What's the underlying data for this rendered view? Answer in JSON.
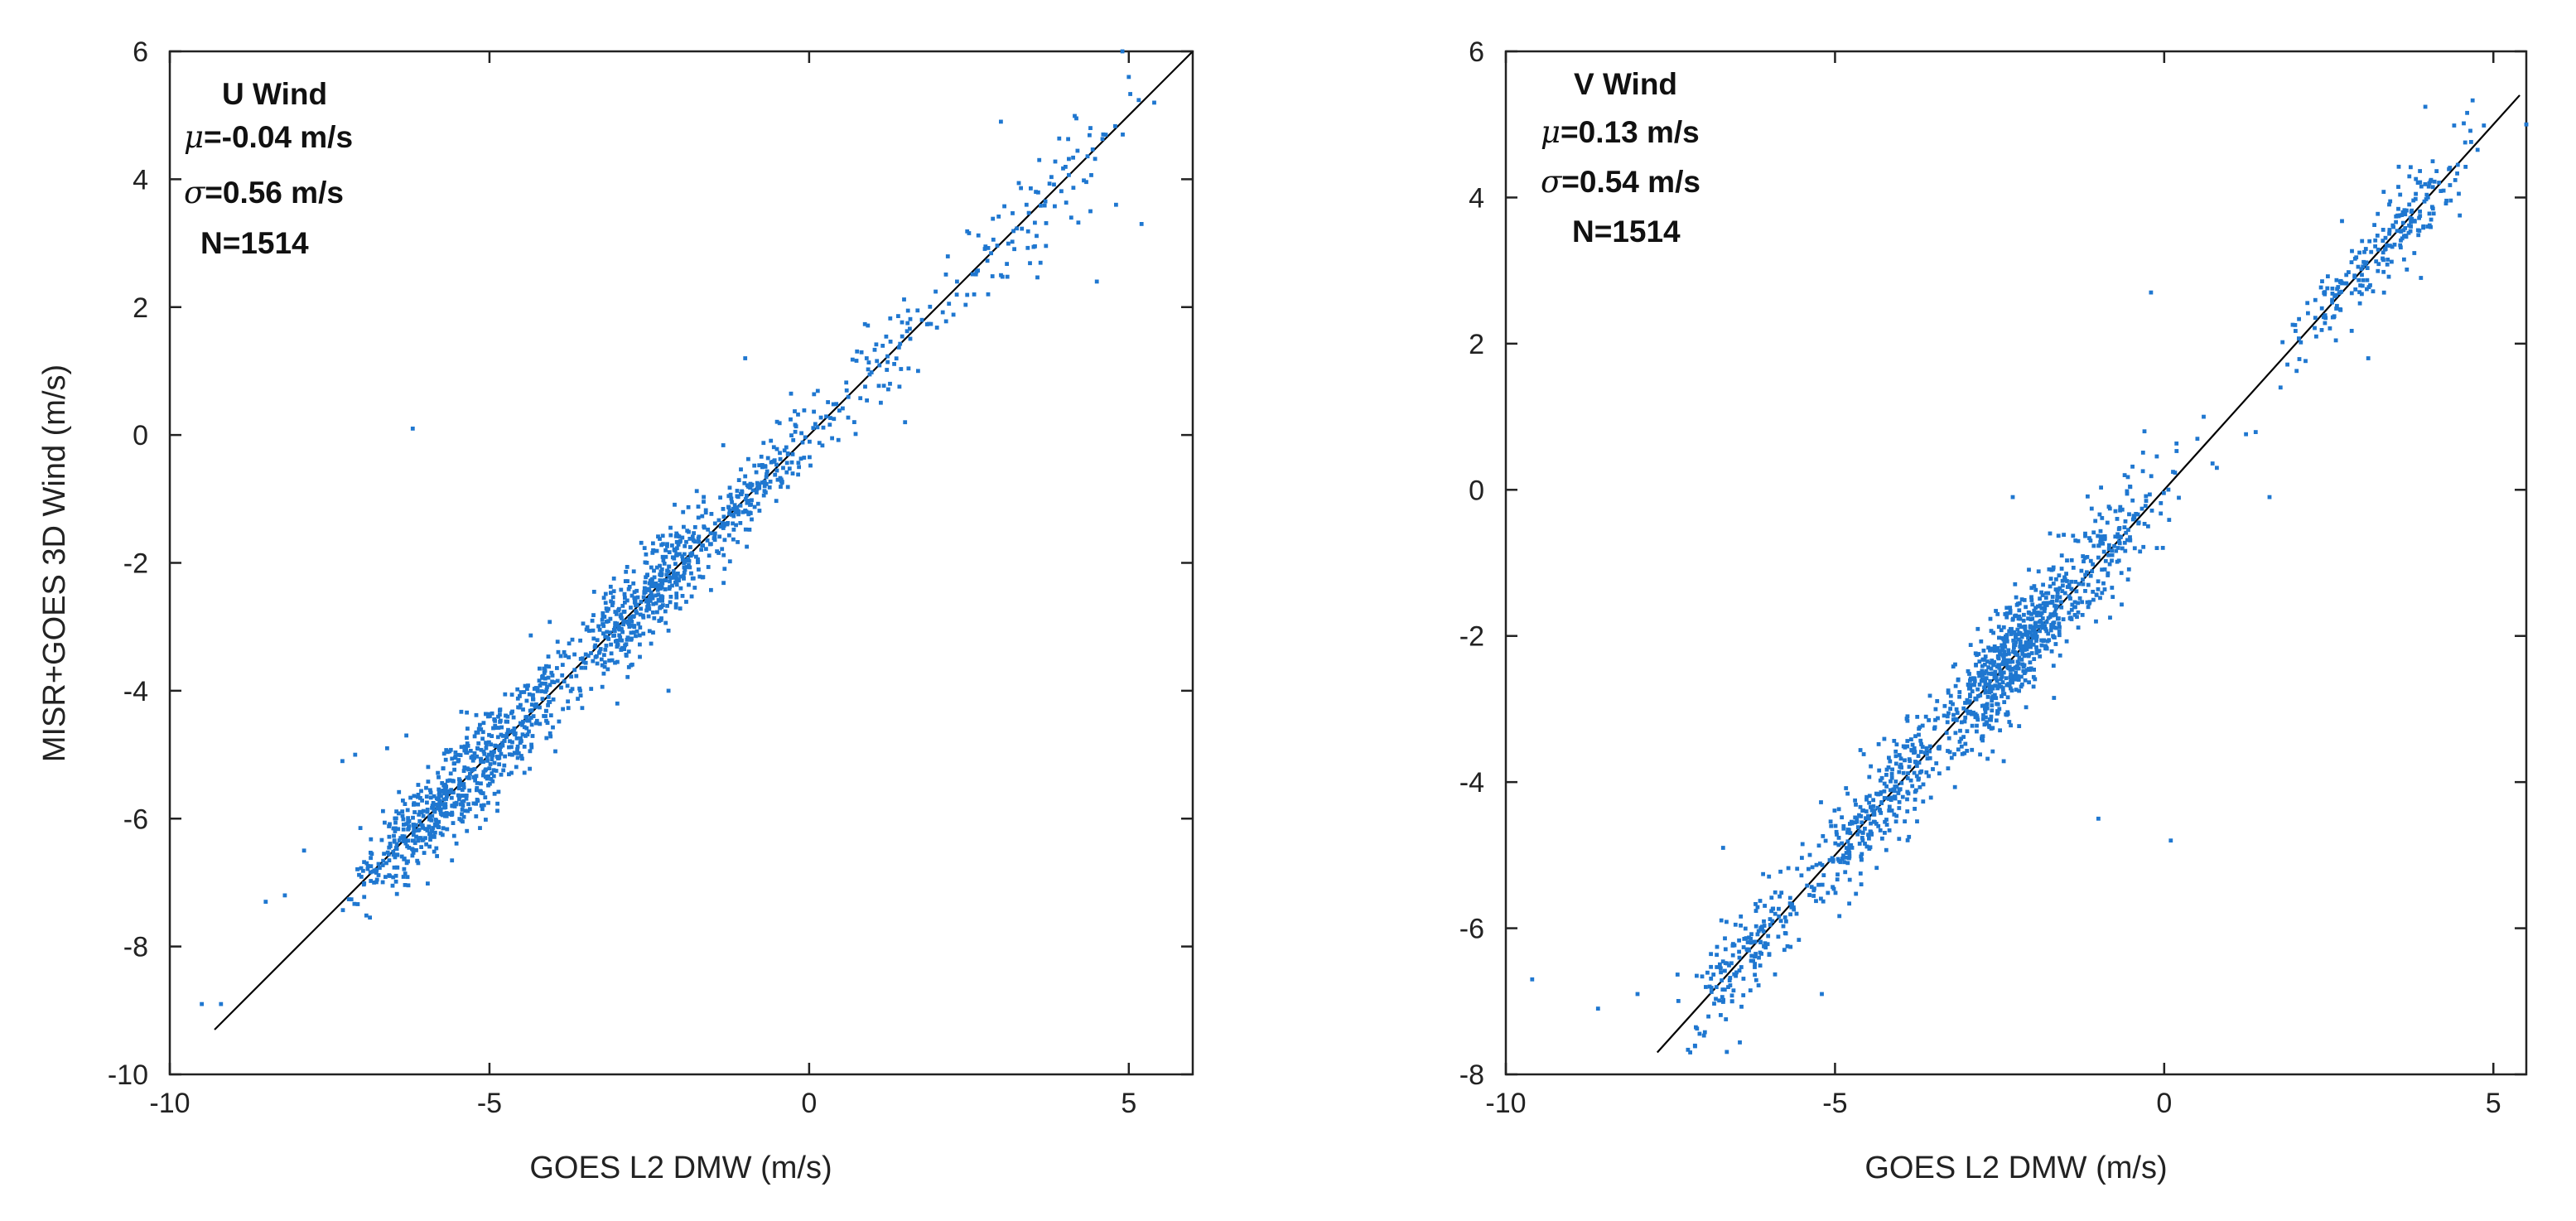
{
  "chart_data": [
    {
      "type": "scatter",
      "panel": "left",
      "title": "U Wind",
      "stats": {
        "mu": "-0.04 m/s",
        "sigma": "0.56 m/s",
        "n": "N=1514"
      },
      "xlabel": "GOES L2 DMW (m/s)",
      "ylabel": "MISR+GOES 3D Wind (m/s)",
      "xlim": [
        -10,
        6
      ],
      "ylim": [
        -10,
        6
      ],
      "xticks": [
        -10,
        -5,
        0,
        5
      ],
      "yticks": [
        -10,
        -8,
        -6,
        -4,
        -2,
        0,
        2,
        4,
        6
      ],
      "grid": false,
      "one_to_one_line": [
        [
          -9.3,
          -9.3
        ],
        [
          6,
          6
        ]
      ],
      "marker_color": "#1f77d0",
      "n_points": 1514,
      "point_generation": {
        "seed": 11,
        "clusters": [
          {
            "x_mean": -6.0,
            "x_sd": 0.55,
            "weight": 0.22,
            "noise_sd": 0.35
          },
          {
            "x_mean": -4.8,
            "x_sd": 0.7,
            "weight": 0.23,
            "noise_sd": 0.38
          },
          {
            "x_mean": -2.5,
            "x_sd": 0.6,
            "weight": 0.32,
            "noise_sd": 0.36
          },
          {
            "x_mean": -0.8,
            "x_sd": 0.6,
            "weight": 0.12,
            "noise_sd": 0.3
          },
          {
            "x_mean": 1.5,
            "x_sd": 1.0,
            "weight": 0.06,
            "noise_sd": 0.32
          },
          {
            "x_mean": 3.8,
            "x_sd": 0.8,
            "weight": 0.05,
            "noise_sd": 0.45
          }
        ]
      },
      "notable_points": [
        [
          -6.2,
          0.1
        ],
        [
          -9.5,
          -8.9
        ],
        [
          -9.2,
          -8.9
        ],
        [
          -8.5,
          -7.3
        ],
        [
          -8.2,
          -7.2
        ],
        [
          -7.9,
          -6.5
        ],
        [
          -7.3,
          -5.1
        ],
        [
          -7.1,
          -5.0
        ],
        [
          -6.6,
          -4.9
        ],
        [
          -6.3,
          -4.7
        ],
        [
          4.9,
          6.0
        ],
        [
          5.0,
          5.6
        ],
        [
          3.0,
          4.9
        ],
        [
          4.4,
          4.8
        ],
        [
          4.6,
          4.7
        ],
        [
          4.1,
          3.4
        ],
        [
          4.4,
          3.5
        ],
        [
          4.8,
          3.6
        ],
        [
          5.2,
          3.3
        ],
        [
          4.5,
          2.4
        ],
        [
          3.6,
          4.3
        ],
        [
          3.4,
          3.6
        ],
        [
          -1.0,
          1.2
        ],
        [
          -2.2,
          -4.0
        ],
        [
          -3.0,
          -4.2
        ],
        [
          1.5,
          0.2
        ],
        [
          0.9,
          1.2
        ],
        [
          2.8,
          2.2
        ]
      ]
    },
    {
      "type": "scatter",
      "panel": "right",
      "title": "V Wind",
      "stats": {
        "mu": "0.13 m/s",
        "sigma": "0.54 m/s",
        "n": "N=1514"
      },
      "xlabel": "GOES L2 DMW (m/s)",
      "ylabel": "",
      "xlim": [
        -10,
        5.5
      ],
      "ylim": [
        -8,
        6
      ],
      "xticks": [
        -10,
        -5,
        0,
        5
      ],
      "yticks": [
        -8,
        -6,
        -4,
        -2,
        0,
        2,
        4,
        6
      ],
      "grid": false,
      "one_to_one_line": [
        [
          -7.7,
          -7.7
        ],
        [
          5.4,
          5.4
        ]
      ],
      "marker_color": "#1f77d0",
      "n_points": 1514,
      "point_generation": {
        "seed": 29,
        "clusters": [
          {
            "x_mean": -6.3,
            "x_sd": 0.5,
            "weight": 0.12,
            "noise_sd": 0.35
          },
          {
            "x_mean": -4.2,
            "x_sd": 0.6,
            "weight": 0.22,
            "noise_sd": 0.4
          },
          {
            "x_mean": -2.3,
            "x_sd": 0.45,
            "weight": 0.38,
            "noise_sd": 0.4
          },
          {
            "x_mean": -0.9,
            "x_sd": 0.6,
            "weight": 0.12,
            "noise_sd": 0.38
          },
          {
            "x_mean": 2.6,
            "x_sd": 0.45,
            "weight": 0.05,
            "noise_sd": 0.25
          },
          {
            "x_mean": 3.6,
            "x_sd": 0.45,
            "weight": 0.11,
            "noise_sd": 0.3
          }
        ]
      },
      "notable_points": [
        [
          -9.6,
          -6.7
        ],
        [
          -8.6,
          -7.1
        ],
        [
          -7.2,
          -7.7
        ],
        [
          -8.0,
          -6.9
        ],
        [
          -6.7,
          -4.9
        ],
        [
          -0.2,
          2.7
        ],
        [
          0.6,
          1.0
        ],
        [
          -0.3,
          0.8
        ],
        [
          1.6,
          -0.1
        ],
        [
          5.5,
          5.0
        ],
        [
          3.1,
          1.8
        ],
        [
          3.9,
          2.9
        ],
        [
          0.1,
          -4.8
        ],
        [
          -2.3,
          -0.1
        ],
        [
          -0.6,
          0.2
        ],
        [
          -1.2,
          -0.6
        ],
        [
          0.8,
          0.3
        ],
        [
          -3.9,
          -3.1
        ],
        [
          -1.0,
          -4.5
        ],
        [
          -5.2,
          -6.9
        ]
      ]
    }
  ]
}
